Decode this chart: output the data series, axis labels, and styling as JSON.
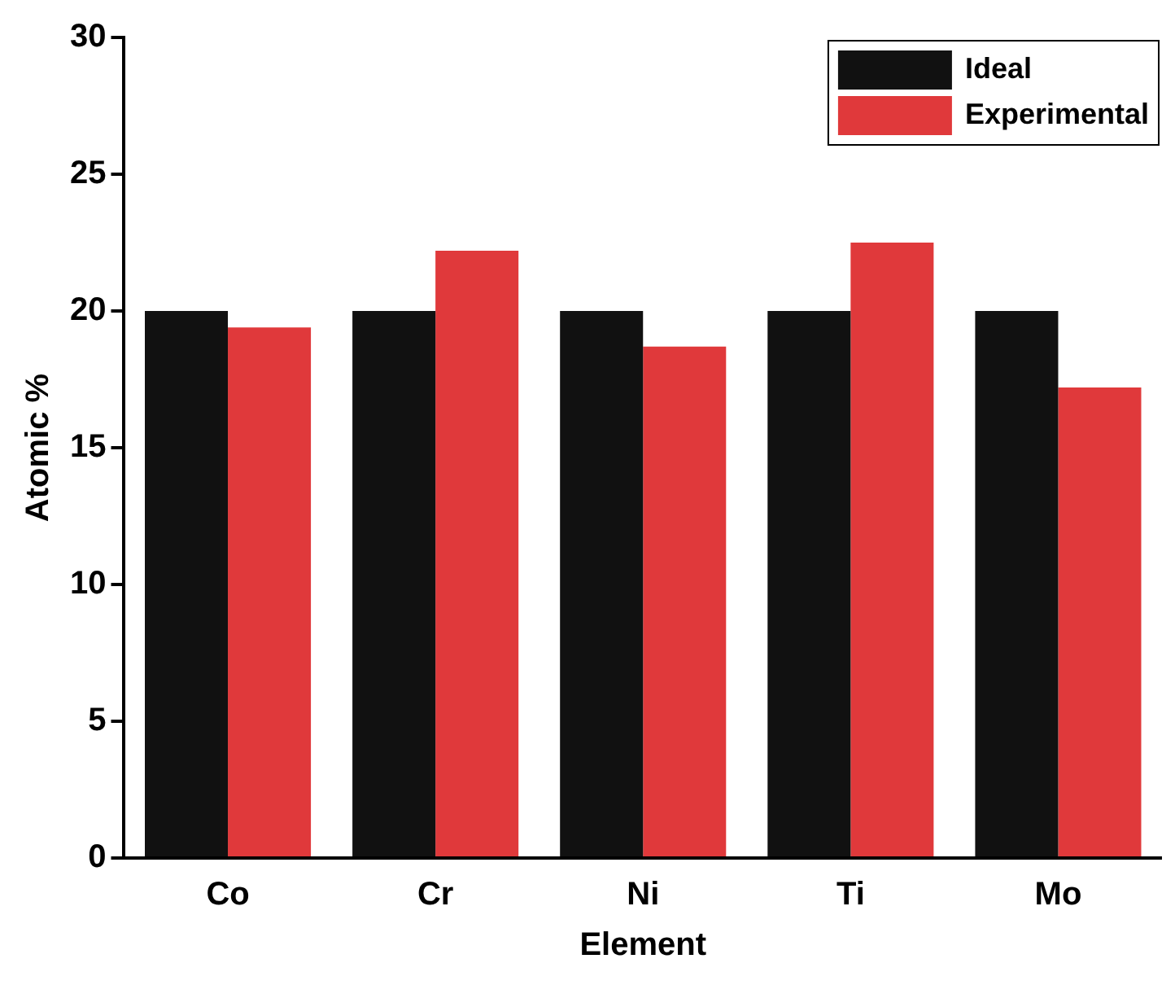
{
  "chart_data": {
    "type": "bar",
    "xlabel": "Element",
    "ylabel": "Atomic %",
    "categories": [
      "Co",
      "Cr",
      "Ni",
      "Ti",
      "Mo"
    ],
    "series": [
      {
        "name": "Ideal",
        "color": "#111111",
        "values": [
          20,
          20,
          20,
          20,
          20
        ]
      },
      {
        "name": "Experimental",
        "color": "#e0393b",
        "values": [
          19.4,
          22.2,
          18.7,
          22.5,
          17.2
        ]
      }
    ],
    "ylim": [
      0,
      30
    ],
    "yticks": [
      0,
      5,
      10,
      15,
      20,
      25,
      30
    ],
    "grid": false,
    "legend": "top right"
  }
}
